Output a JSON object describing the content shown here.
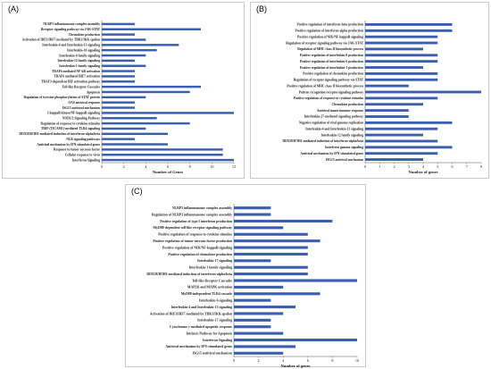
{
  "panels": {
    "a": {
      "label": "(A)"
    },
    "b": {
      "label": "(B)"
    },
    "c": {
      "label": "(C)"
    }
  },
  "bar_color": "#3b5fb0",
  "chart_data": [
    {
      "type": "bar",
      "orientation": "horizontal",
      "panel": "A",
      "xlabel": "Number of Genes",
      "xlim": [
        0,
        12
      ],
      "xticks": [
        0,
        2,
        4,
        6,
        8,
        10,
        12
      ],
      "categories": [
        "NLRP3 inflammasome complex assembly",
        "Receptor signaling pathway via JAK-STAT",
        "Chemokine production",
        "Activation of IRF3/IRF7 mediated by TBK1/IKK epsilon",
        "Interleukin-4 and Interleukin-13 signaling",
        "Interleukin-10 signaling",
        "Interleukin-6 family signaling",
        "Interleukin-12 family signaling",
        "Interleukin-1 family signaling",
        "TRAF6 mediated NF-kB activation",
        "TRAF6 mediated IRF7 activation",
        "TRAF3-dependent IRF activation pathway",
        "Toll-like Receptor Cascades",
        "Apoptosis",
        "Regulation of tyrosine phosphorylation of STAT protein",
        "OAS antiviral response",
        "ISG15 antiviral mechanism",
        "I-kappaB kinase/NF-kappaB signaling",
        "NOD1/2 Signaling Pathway",
        "Regulation of response to cytokine stimulus",
        "TRIF (TICAM1)-mediated TLR4 signaling",
        "DDX58/IFIH1-mediated induction of interferon-alpha/beta",
        "NLR signaling pathways",
        "Antiviral mechanism by IFN-stimulated genes",
        "Response to tumor necrosis factor",
        "Cellular response to virus",
        "Interferon Signaling"
      ],
      "values": [
        3,
        9,
        3,
        4,
        7,
        5,
        4,
        3,
        4,
        3,
        3,
        3,
        9,
        8,
        4,
        3,
        3,
        12,
        5,
        8,
        4,
        6,
        3,
        6,
        11,
        11,
        12
      ]
    },
    {
      "type": "bar",
      "orientation": "horizontal",
      "panel": "B",
      "xlabel": "Number of genes",
      "xlim": [
        0,
        8
      ],
      "xticks": [
        0,
        1,
        2,
        3,
        4,
        5,
        6,
        7,
        8
      ],
      "categories": [
        "Positive regulation of interferon-beta production",
        "Positive regulation of interferon-alpha production",
        "Positive regulation of NIK/NF-kappaB signaling",
        "Regulation of receptor signaling pathway via JAK-STAT",
        "Regulation of MHC class II biosynthetic process",
        "Positive regulation of interleukin-8 production",
        "Positive regulation of interleukin-6 production",
        "Positive regulation of interleukin-1 production",
        "Positive regulation of chemokine production",
        "Regulation of receptor signaling pathway via STAT",
        "Positive regulation of MHC class II biosynthetic process",
        "Pattern recognition receptor signaling pathway",
        "Positive regulation of response to cytokine stimulus",
        "Chemokine production",
        "Antiviral innate immune response",
        "Interleukin-27-mediated signaling pathway",
        "Negative regulation of viral genome replication",
        "Interleukin-4 and Interleukin-13 signaling",
        "Interleukin-12 family signaling",
        "DDX58/IFIH1-mediated induction of interferon-alpha/beta",
        "Interferon gamma signaling",
        "Antiviral mechanism by IFN-stimulated genes",
        "ISG15 antiviral mechanism"
      ],
      "values": [
        6,
        6,
        5,
        5,
        4,
        5,
        5,
        4,
        5,
        5,
        3,
        8,
        5,
        4,
        3,
        3,
        6,
        5,
        4,
        5,
        6,
        5,
        4
      ]
    },
    {
      "type": "bar",
      "orientation": "horizontal",
      "panel": "C",
      "xlabel": "Number of genes",
      "xlim": [
        0,
        10
      ],
      "xticks": [
        0,
        2,
        4,
        6,
        8,
        10
      ],
      "categories": [
        "NLRP3 inflammasome complex assembly",
        "Regulation of NLRP3 inflammasome complex assembly",
        "Positive regulation of type I interferon production",
        "MyD88-dependent toll-like receptor signaling pathway",
        "Positive regulation of response to cytokine stimulus",
        "Positive regulation of tumor necrosis factor production",
        "Positive regulation of NIK/NF-kappaB signaling",
        "Positive regulation of chemokine production",
        "Interleukin-17 signaling",
        "Interleukin-1 family signaling",
        "DDX58/IFIH1-mediated induction of interferon-alpha/beta",
        "Toll-like Receptor Cascades",
        "MAP2K and MAPK activation",
        "MyD88-independent TLR4 cascade",
        "Interleukin-6 signaling",
        "Interleukin-4 and Interleukin-13 signaling",
        "Activation of IRF3/IRF7 mediated by TBK1/IKK epsilon",
        "Interleukin-17 signaling",
        "Cytochrome c-mediated apoptotic response",
        "Intrinsic Pathway for Apoptosis",
        "Interferon Signaling",
        "Antiviral mechanism by IFN-stimulated genes",
        "ISG15 antiviral mechanism"
      ],
      "values": [
        3,
        3,
        8,
        4,
        6,
        7,
        6,
        6,
        3,
        6,
        6,
        10,
        4,
        7,
        3,
        5,
        4,
        3,
        3,
        4,
        10,
        5,
        4
      ]
    }
  ]
}
